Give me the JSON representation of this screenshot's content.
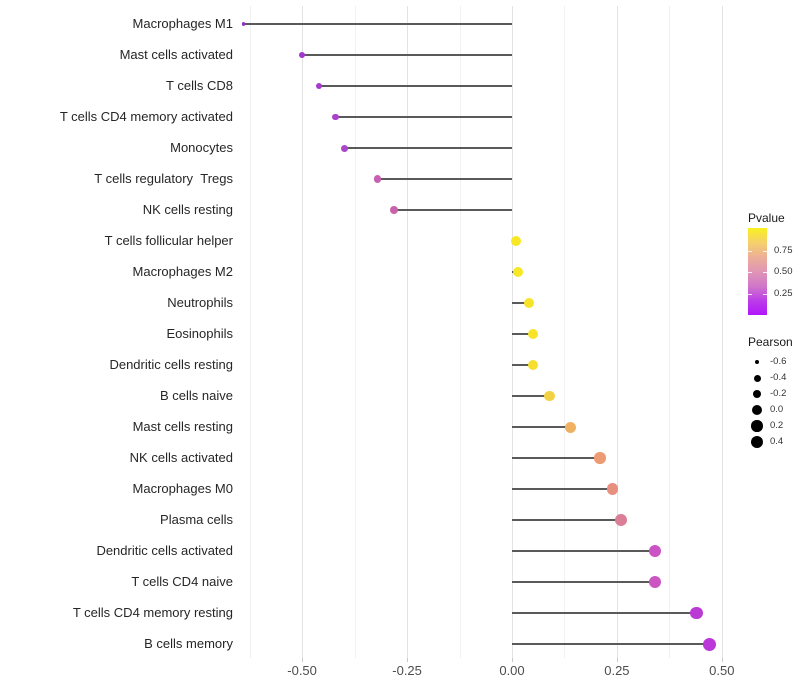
{
  "colors": {
    "background": "#ffffff",
    "stem": "#595959",
    "grid_major": "#e3e3e3",
    "grid_minor": "#f1f1f1",
    "y_label_text": "#262626",
    "x_label_text": "#4d4d4d",
    "legend_dot": "#000000"
  },
  "chart_data": {
    "type": "scatter",
    "subtype": "lollipop",
    "title": "",
    "xlabel": "",
    "ylabel": "",
    "x_axis": {
      "domain": [
        -0.691,
        0.522
      ],
      "major_ticks": [
        -0.5,
        -0.25,
        0,
        0.25,
        0.5
      ],
      "major_tick_labels": [
        "-0.50",
        "-0.25",
        "0.00",
        "0.25",
        "0.50"
      ],
      "minor_ticks": [
        -0.625,
        -0.375,
        -0.125,
        0.125,
        0.375
      ],
      "grid": true
    },
    "rows": [
      {
        "label": "Macrophages M1",
        "pearson": -0.64,
        "color": "#9031C8"
      },
      {
        "label": "Mast cells activated",
        "pearson": -0.5,
        "color": "#A137CE"
      },
      {
        "label": "T cells CD8",
        "pearson": -0.46,
        "color": "#A43BCE"
      },
      {
        "label": "T cells CD4 memory activated",
        "pearson": -0.42,
        "color": "#A942CC"
      },
      {
        "label": "Monocytes",
        "pearson": -0.4,
        "color": "#AB45CA"
      },
      {
        "label": "T cells regulatory  Tregs",
        "pearson": -0.32,
        "color": "#C75FB2"
      },
      {
        "label": "NK cells resting",
        "pearson": -0.28,
        "color": "#C962AA"
      },
      {
        "label": "T cells follicular helper",
        "pearson": 0.01,
        "color": "#F8E724"
      },
      {
        "label": "Macrophages M2",
        "pearson": 0.015,
        "color": "#F8E724"
      },
      {
        "label": "Neutrophils",
        "pearson": 0.04,
        "color": "#F8E32B"
      },
      {
        "label": "Eosinophils",
        "pearson": 0.05,
        "color": "#F8E32B"
      },
      {
        "label": "Dendritic cells resting",
        "pearson": 0.05,
        "color": "#F6DF2F"
      },
      {
        "label": "B cells naive",
        "pearson": 0.09,
        "color": "#F2D244"
      },
      {
        "label": "Mast cells resting",
        "pearson": 0.14,
        "color": "#EFB062"
      },
      {
        "label": "NK cells activated",
        "pearson": 0.21,
        "color": "#EC9B73"
      },
      {
        "label": "Macrophages M0",
        "pearson": 0.24,
        "color": "#E88F80"
      },
      {
        "label": "Plasma cells",
        "pearson": 0.26,
        "color": "#DB7E97"
      },
      {
        "label": "Dendritic cells activated",
        "pearson": 0.34,
        "color": "#CB53C4"
      },
      {
        "label": "T cells CD4 naive",
        "pearson": 0.34,
        "color": "#CB56C2"
      },
      {
        "label": "T cells CD4 memory resting",
        "pearson": 0.44,
        "color": "#B93BD3"
      },
      {
        "label": "B cells memory",
        "pearson": 0.47,
        "color": "#BB37D8"
      }
    ],
    "legend_pvalue": {
      "title": "Pvalue",
      "tick_labels": [
        "0.75",
        "0.50",
        "0.25"
      ],
      "gradient_top_to_bottom": [
        "#F9F11E",
        "#F6D06B",
        "#EDAF97",
        "#E096B5",
        "#D078C9",
        "#BC3EE8",
        "#B116FA"
      ]
    },
    "legend_pearson": {
      "title": "Pearson",
      "entries": [
        {
          "label": "-0.6",
          "value": -0.6
        },
        {
          "label": "-0.4",
          "value": -0.4
        },
        {
          "label": "-0.2",
          "value": -0.2
        },
        {
          "label": "0.0",
          "value": 0.0
        },
        {
          "label": "0.2",
          "value": 0.2
        },
        {
          "label": "0.4",
          "value": 0.4
        }
      ]
    }
  }
}
